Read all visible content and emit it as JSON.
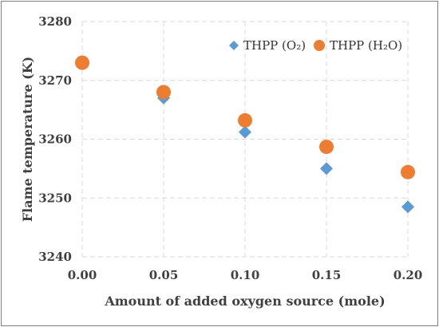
{
  "chart_data": {
    "type": "scatter",
    "title": "",
    "xlabel": "Amount of added oxygen source (mole)",
    "ylabel": "Flame temperature (K)",
    "xlim": [
      0.0,
      0.2
    ],
    "ylim": [
      3240,
      3280
    ],
    "x_ticks": [
      "0.00",
      "0.05",
      "0.10",
      "0.15",
      "0.20"
    ],
    "y_ticks": [
      "3240",
      "3250",
      "3260",
      "3270",
      "3280"
    ],
    "grid": true,
    "legend_position": "top-right",
    "series": [
      {
        "name": "THPP (O₂)",
        "marker": "diamond",
        "color": "#5b9bd5",
        "x": [
          0.05,
          0.1,
          0.15,
          0.2
        ],
        "y": [
          3267.0,
          3261.2,
          3255.0,
          3248.5
        ]
      },
      {
        "name": "THPP (H₂O)",
        "marker": "circle",
        "color": "#ed7d31",
        "x": [
          0.0,
          0.05,
          0.1,
          0.15,
          0.2
        ],
        "y": [
          3273.0,
          3268.0,
          3263.2,
          3258.7,
          3254.4
        ]
      }
    ]
  }
}
